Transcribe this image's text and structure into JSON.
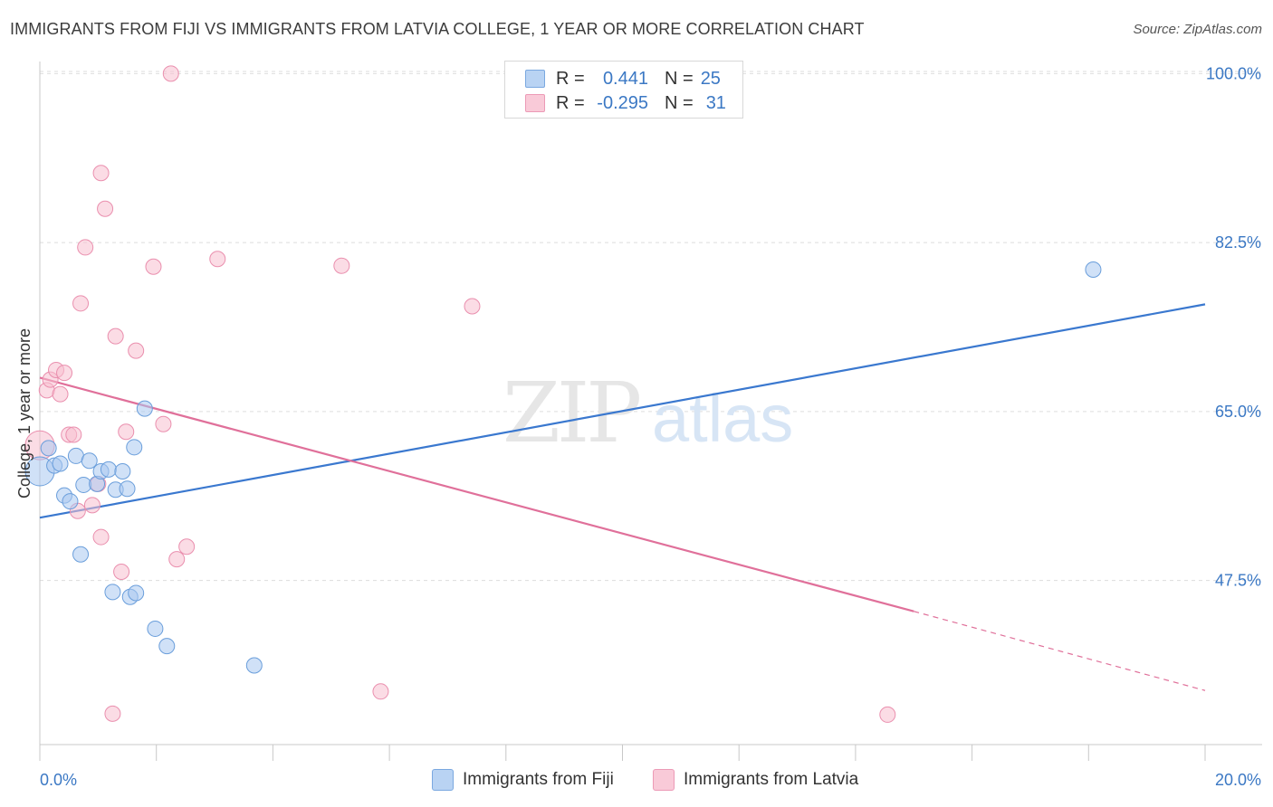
{
  "header": {
    "title": "IMMIGRANTS FROM FIJI VS IMMIGRANTS FROM LATVIA COLLEGE, 1 YEAR OR MORE CORRELATION CHART",
    "source": "Source: ZipAtlas.com"
  },
  "legend": {
    "rows": [
      {
        "r_label": "R =",
        "r_value": "0.441",
        "n_label": "N =",
        "n_value": "25"
      },
      {
        "r_label": "R =",
        "r_value": "-0.295",
        "n_label": "N =",
        "n_value": "31"
      }
    ]
  },
  "bottom_legend": {
    "fiji": "Immigrants from Fiji",
    "latvia": "Immigrants from Latvia"
  },
  "watermark": {
    "zip": "ZIP",
    "atlas": "atlas"
  },
  "colors": {
    "fiji_fill": "#a9c8f0",
    "fiji_stroke": "#6a9edb",
    "fiji_line": "#3a78cf",
    "latvia_fill": "#f7c0d0",
    "latvia_stroke": "#ea8fae",
    "latvia_line": "#e0709a",
    "tick_label": "#3b78c4",
    "grid": "#dddddd"
  },
  "chart_data": {
    "type": "scatter",
    "title": "IMMIGRANTS FROM FIJI VS IMMIGRANTS FROM LATVIA COLLEGE, 1 YEAR OR MORE CORRELATION CHART",
    "xlabel": "",
    "ylabel": "College, 1 year or more",
    "xlim": [
      0,
      20
    ],
    "ylim": [
      30.5,
      102
    ],
    "x_tick_labels": [
      "0.0%",
      "20.0%"
    ],
    "y_ticks": [
      47.5,
      65.0,
      82.5,
      100.0
    ],
    "y_tick_labels": [
      "47.5%",
      "65.0%",
      "82.5%",
      "100.0%"
    ],
    "grid": true,
    "legend_position": "top-center",
    "series": [
      {
        "name": "Immigrants from Fiji",
        "r": 0.441,
        "n": 25,
        "points": [
          [
            0.0,
            58.8
          ],
          [
            0.15,
            61.2
          ],
          [
            0.25,
            59.4
          ],
          [
            0.35,
            59.6
          ],
          [
            0.42,
            56.3
          ],
          [
            0.52,
            55.7
          ],
          [
            0.62,
            60.4
          ],
          [
            0.7,
            50.2
          ],
          [
            0.75,
            57.4
          ],
          [
            0.85,
            59.9
          ],
          [
            0.98,
            57.5
          ],
          [
            1.05,
            58.8
          ],
          [
            1.18,
            59.0
          ],
          [
            1.3,
            56.9
          ],
          [
            1.42,
            58.8
          ],
          [
            1.5,
            57.0
          ],
          [
            1.62,
            61.3
          ],
          [
            1.8,
            65.3
          ],
          [
            1.25,
            46.3
          ],
          [
            1.55,
            45.8
          ],
          [
            1.65,
            46.2
          ],
          [
            1.98,
            42.5
          ],
          [
            2.18,
            40.7
          ],
          [
            3.68,
            38.7
          ],
          [
            18.08,
            79.7
          ]
        ],
        "trend": {
          "x": [
            0,
            20
          ],
          "y": [
            54.0,
            76.1
          ]
        }
      },
      {
        "name": "Immigrants from Latvia",
        "r": -0.295,
        "n": 31,
        "points": [
          [
            0.0,
            61.5
          ],
          [
            0.12,
            67.2
          ],
          [
            0.18,
            68.3
          ],
          [
            0.28,
            69.3
          ],
          [
            0.35,
            66.8
          ],
          [
            0.42,
            69.0
          ],
          [
            0.5,
            62.6
          ],
          [
            0.58,
            62.6
          ],
          [
            0.65,
            54.7
          ],
          [
            0.7,
            76.2
          ],
          [
            0.78,
            82.0
          ],
          [
            0.9,
            55.3
          ],
          [
            1.0,
            57.5
          ],
          [
            1.05,
            89.7
          ],
          [
            1.05,
            52.0
          ],
          [
            1.12,
            86.0
          ],
          [
            1.3,
            72.8
          ],
          [
            1.4,
            48.4
          ],
          [
            1.48,
            62.9
          ],
          [
            1.65,
            71.3
          ],
          [
            1.95,
            80.0
          ],
          [
            2.12,
            63.7
          ],
          [
            2.35,
            49.7
          ],
          [
            2.52,
            51.0
          ],
          [
            3.05,
            80.8
          ],
          [
            5.18,
            80.1
          ],
          [
            7.42,
            75.9
          ],
          [
            2.25,
            100.0
          ],
          [
            1.25,
            33.7
          ],
          [
            5.85,
            36.0
          ],
          [
            14.55,
            33.6
          ]
        ],
        "trend": {
          "x": [
            0,
            15.0,
            20
          ],
          "y": [
            68.5,
            44.3,
            36.1
          ],
          "solid_until": 15.0
        }
      }
    ]
  }
}
